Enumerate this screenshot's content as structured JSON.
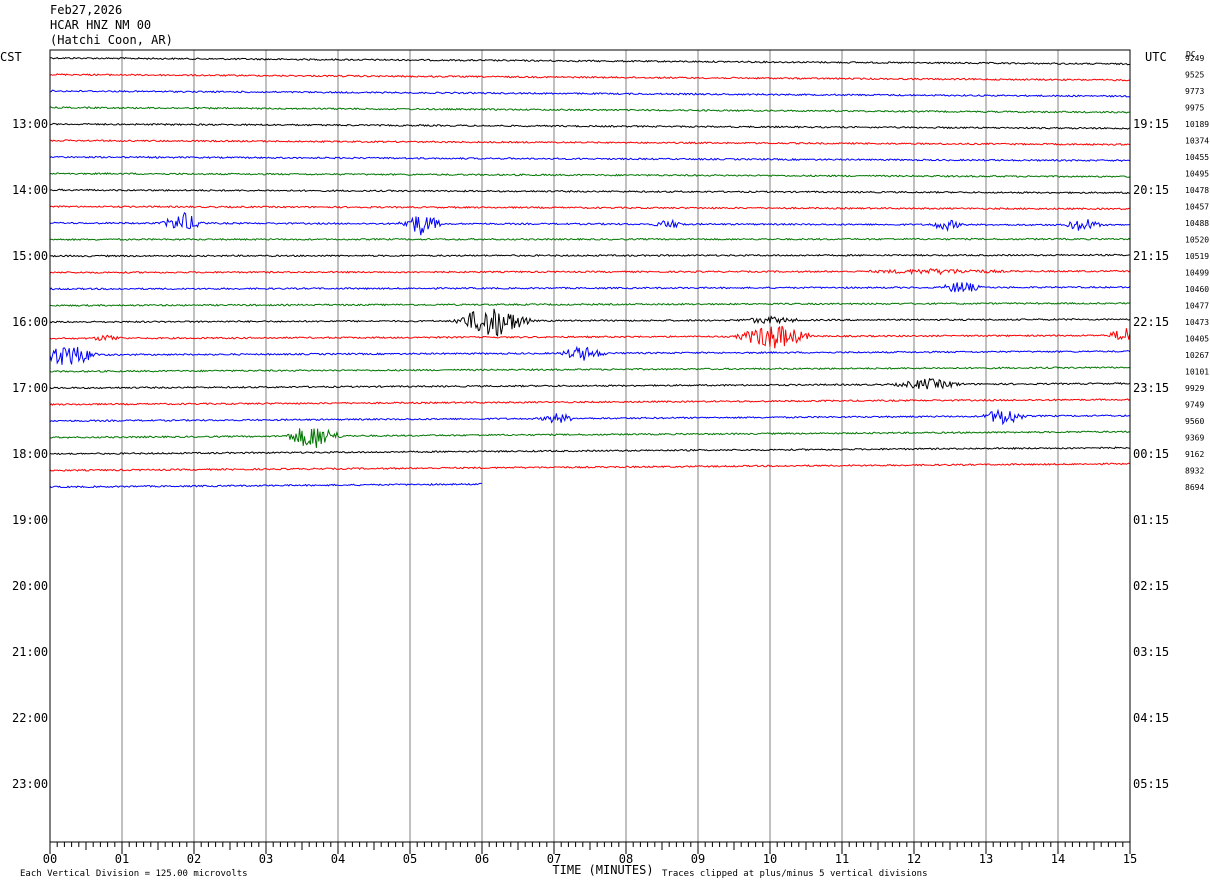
{
  "header": {
    "date": "Feb27,2026",
    "station": "HCAR HNZ NM 00",
    "location": "(Hatchi Coon, AR)"
  },
  "chart_data": {
    "type": "line",
    "title": "",
    "left_axis_label": "CST",
    "right_axis_label": "UTC",
    "dc_label": "DC",
    "xlabel": "TIME (MINUTES)",
    "x_ticks": [
      "00",
      "01",
      "02",
      "03",
      "04",
      "05",
      "06",
      "07",
      "08",
      "09",
      "10",
      "11",
      "12",
      "13",
      "14",
      "15"
    ],
    "xlim": [
      0,
      15
    ],
    "left_time_labels": [
      "13:00",
      "14:00",
      "15:00",
      "16:00",
      "17:00",
      "18:00",
      "19:00",
      "20:00",
      "21:00",
      "22:00",
      "23:00"
    ],
    "right_time_labels": [
      "19:15",
      "20:15",
      "21:15",
      "22:15",
      "23:15",
      "00:15",
      "01:15",
      "02:15",
      "03:15",
      "04:15",
      "05:15"
    ],
    "dc_offsets": [
      "9249",
      "9525",
      "9773",
      "9975",
      "10189",
      "10374",
      "10455",
      "10495",
      "10478",
      "10457",
      "10488",
      "10520",
      "10519",
      "10499",
      "10460",
      "10477",
      "10473",
      "10405",
      "10267",
      "10101",
      "9929",
      "9749",
      "9560",
      "9369",
      "9162",
      "8932",
      "8694"
    ],
    "trace_colors": [
      "#000000",
      "#ff0000",
      "#0000ff",
      "#007700"
    ],
    "footer_left": "Each Vertical Division =  125.00 microvolts",
    "footer_right": "Traces clipped at plus/minus 5 vertical divisions",
    "traces_completed": 27,
    "last_trace_end_minute": 6,
    "events": [
      {
        "trace": 10,
        "minute": 1.85,
        "amp": 11,
        "dur": 0.35
      },
      {
        "trace": 10,
        "minute": 5.15,
        "amp": 12,
        "dur": 0.35
      },
      {
        "trace": 10,
        "minute": 8.6,
        "amp": 5,
        "dur": 0.3
      },
      {
        "trace": 10,
        "minute": 12.45,
        "amp": 6,
        "dur": 0.3
      },
      {
        "trace": 10,
        "minute": 14.35,
        "amp": 8,
        "dur": 0.3
      },
      {
        "trace": 13,
        "minute": 12.3,
        "amp": 3,
        "dur": 1.5
      },
      {
        "trace": 14,
        "minute": 12.65,
        "amp": 7,
        "dur": 0.35
      },
      {
        "trace": 16,
        "minute": 6.15,
        "amp": 18,
        "dur": 0.6
      },
      {
        "trace": 16,
        "minute": 10.0,
        "amp": 4,
        "dur": 0.6
      },
      {
        "trace": 17,
        "minute": 0.8,
        "amp": 4,
        "dur": 0.3
      },
      {
        "trace": 17,
        "minute": 10.05,
        "amp": 14,
        "dur": 0.6
      },
      {
        "trace": 17,
        "minute": 14.95,
        "amp": 9,
        "dur": 0.3
      },
      {
        "trace": 18,
        "minute": 0.25,
        "amp": 13,
        "dur": 0.5
      },
      {
        "trace": 18,
        "minute": 7.4,
        "amp": 8,
        "dur": 0.4
      },
      {
        "trace": 20,
        "minute": 12.2,
        "amp": 6,
        "dur": 0.6
      },
      {
        "trace": 22,
        "minute": 7.05,
        "amp": 6,
        "dur": 0.3
      },
      {
        "trace": 22,
        "minute": 13.25,
        "amp": 10,
        "dur": 0.35
      },
      {
        "trace": 23,
        "minute": 3.65,
        "amp": 14,
        "dur": 0.45
      }
    ]
  }
}
